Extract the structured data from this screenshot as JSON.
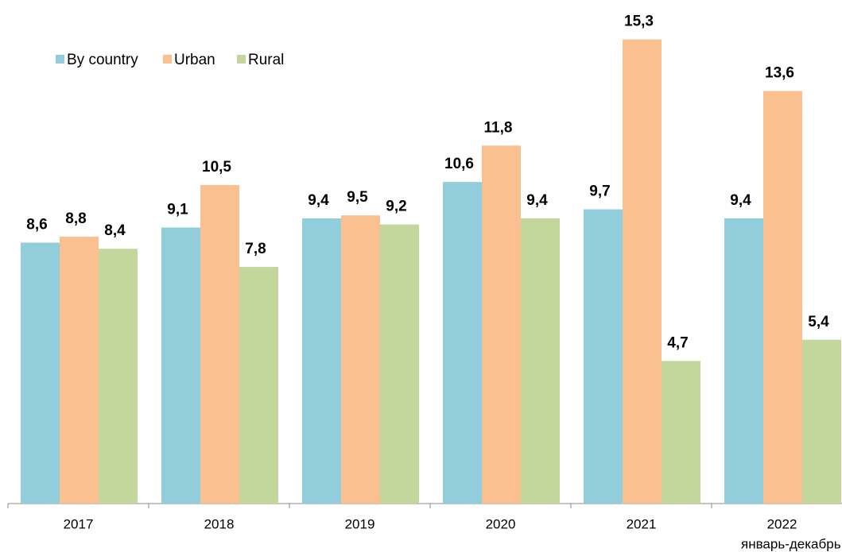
{
  "chart_data": {
    "type": "bar",
    "categories": [
      "2017",
      "2018",
      "2019",
      "2020",
      "2021",
      "2022"
    ],
    "annotation": "январь-декабрь",
    "series": [
      {
        "name": "By country",
        "color": "#92cddc",
        "values": [
          8.6,
          9.1,
          9.4,
          10.6,
          9.7,
          9.4
        ],
        "value_labels": [
          "8,6",
          "9,1",
          "9,4",
          "10,6",
          "9,7",
          "9,4"
        ]
      },
      {
        "name": "Urban",
        "color": "#fac090",
        "values": [
          8.8,
          10.5,
          9.5,
          11.8,
          15.3,
          13.6
        ],
        "value_labels": [
          "8,8",
          "10,5",
          "9,5",
          "11,8",
          "15,3",
          "13,6"
        ]
      },
      {
        "name": "Rural",
        "color": "#c3d69b",
        "values": [
          8.4,
          7.8,
          9.2,
          9.4,
          4.7,
          5.4
        ],
        "value_labels": [
          "8,4",
          "7,8",
          "9,2",
          "9,4",
          "4,7",
          "5,4"
        ]
      }
    ],
    "ylim": [
      0,
      16.6
    ],
    "legend": "top-left"
  }
}
